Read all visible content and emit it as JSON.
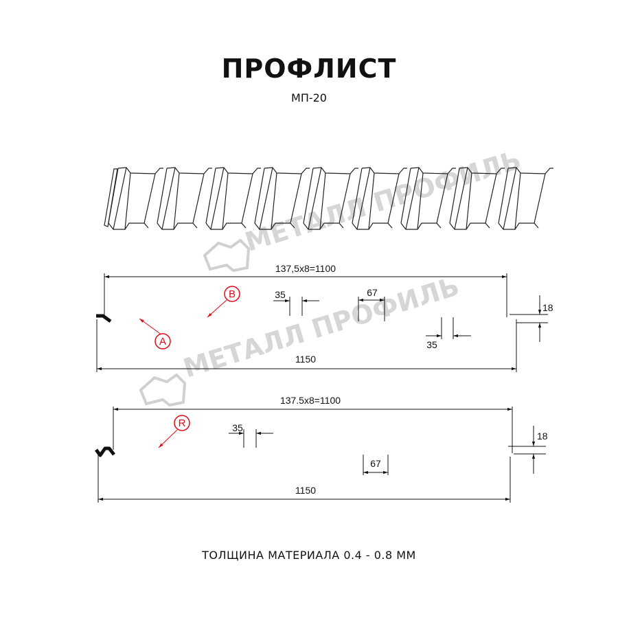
{
  "header": {
    "title": "ПРОФЛИСТ",
    "subtitle": "МП-20"
  },
  "watermark": {
    "text": "МЕТАЛЛ ПРОФИЛЬ",
    "color": "#c9c9c9"
  },
  "profile_a": {
    "pitch_label": "137,5x8=1100",
    "width_label": "1150",
    "height_label": "18",
    "crest_label": "35",
    "valley_label": "67",
    "crest_label_2": "35",
    "marker_a": "A",
    "marker_b": "B"
  },
  "profile_b": {
    "pitch_label": "137.5x8=1100",
    "width_label": "1150",
    "height_label": "18",
    "crest_label": "35",
    "valley_label": "67",
    "marker_r": "R"
  },
  "colors": {
    "line": "#111111",
    "marker": "#e30613"
  },
  "footer": {
    "thickness": "ТОЛЩИНА МАТЕРИАЛА 0.4 - 0.8 ММ"
  }
}
